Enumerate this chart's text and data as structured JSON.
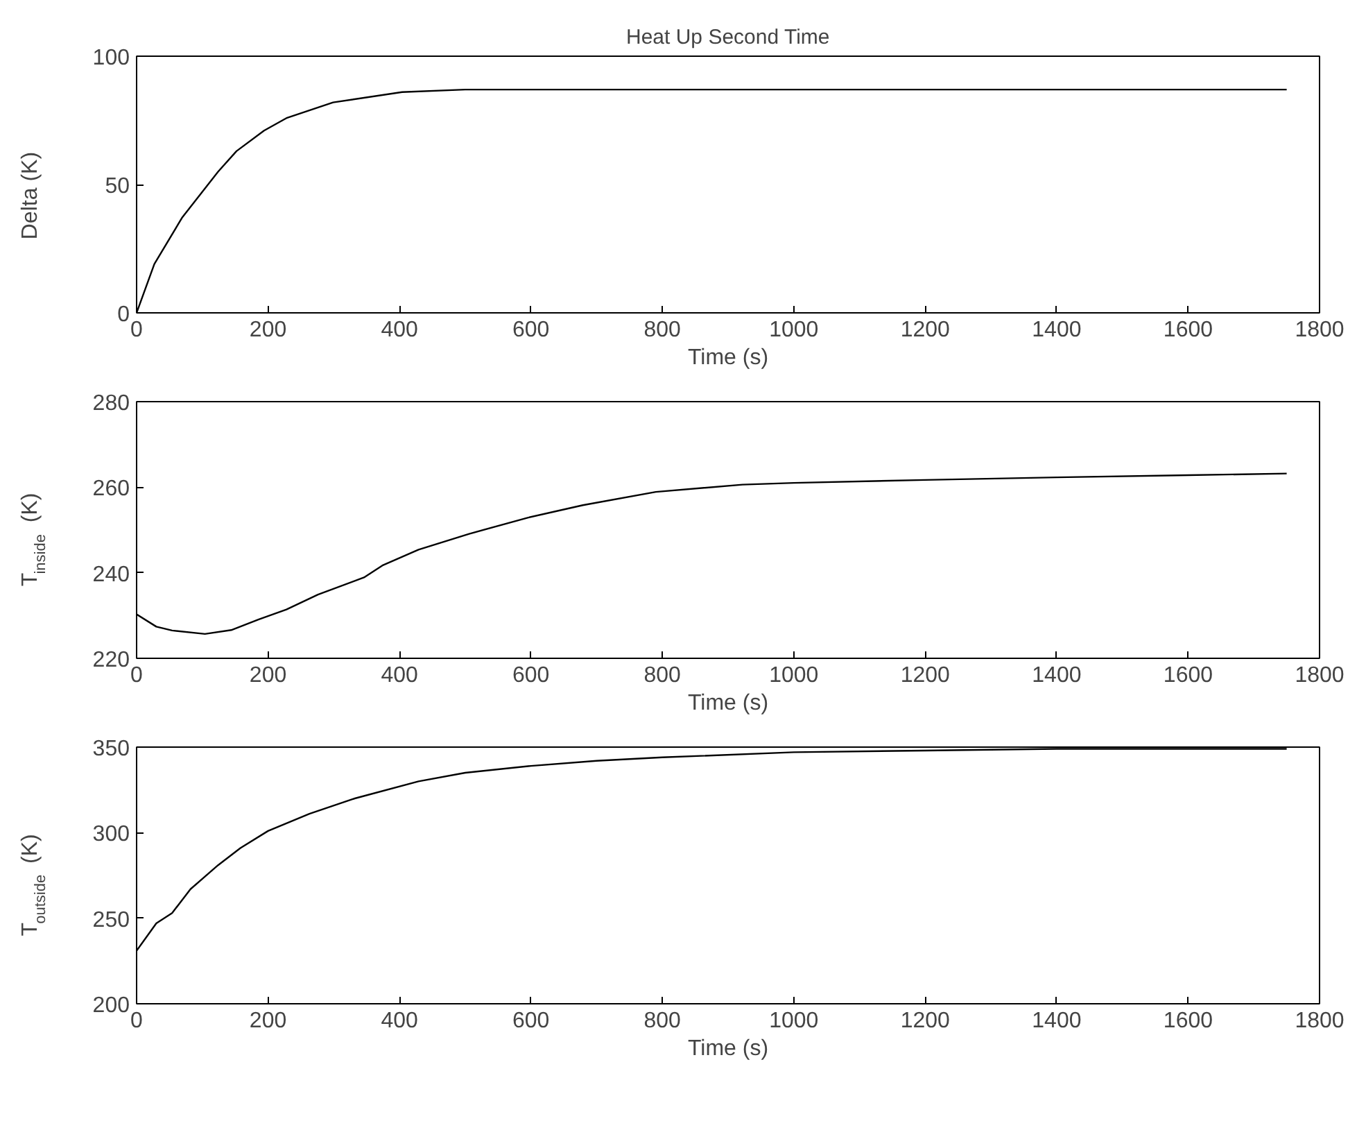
{
  "chart_data": [
    {
      "type": "line",
      "title": "Heat Up Second Time",
      "xlabel": "Time (s)",
      "ylabel": "Delta (K)",
      "xlim": [
        0,
        1800
      ],
      "ylim": [
        0,
        100
      ],
      "xticks": [
        0,
        200,
        400,
        600,
        800,
        1000,
        1200,
        1400,
        1600,
        1800
      ],
      "yticks": [
        0,
        50,
        100
      ],
      "series": [
        {
          "color": "#000000",
          "x": [
            0,
            27,
            69,
            124,
            152,
            194,
            229,
            299,
            404,
            500,
            1750
          ],
          "values": [
            0,
            19,
            37,
            55,
            63,
            71,
            76,
            82,
            86,
            87,
            87
          ]
        }
      ]
    },
    {
      "type": "line",
      "xlabel": "Time (s)",
      "ylabel": "T$_{inside}$ (K)",
      "xlim": [
        0,
        1800
      ],
      "ylim": [
        220,
        280
      ],
      "xticks": [
        0,
        200,
        400,
        600,
        800,
        1000,
        1200,
        1400,
        1600,
        1800
      ],
      "yticks": [
        220,
        240,
        260,
        280
      ],
      "series": [
        {
          "color": "#000000",
          "x": [
            0,
            30,
            54,
            104,
            144,
            186,
            228,
            276,
            346,
            374,
            429,
            506,
            596,
            679,
            790,
            922,
            1000,
            1200,
            1400,
            1600,
            1750
          ],
          "values": [
            230.3,
            227.4,
            226.5,
            225.7,
            226.6,
            229.1,
            231.4,
            234.9,
            238.9,
            241.7,
            245.4,
            249.1,
            252.9,
            255.8,
            258.9,
            260.6,
            261,
            261.7,
            262.3,
            262.8,
            263.2
          ]
        }
      ]
    },
    {
      "type": "line",
      "xlabel": "Time (s)",
      "ylabel": "T$_{outside}$ (K)",
      "xlim": [
        0,
        1800
      ],
      "ylim": [
        200,
        350
      ],
      "xticks": [
        0,
        200,
        400,
        600,
        800,
        1000,
        1200,
        1400,
        1600,
        1800
      ],
      "yticks": [
        200,
        250,
        300,
        350
      ],
      "series": [
        {
          "color": "#000000",
          "x": [
            0,
            30,
            54,
            82,
            124,
            158,
            200,
            263,
            332,
            429,
            500,
            600,
            700,
            800,
            1000,
            1200,
            1400,
            1750
          ],
          "values": [
            231,
            247,
            253,
            267,
            281,
            291,
            301,
            311,
            320,
            330,
            335,
            339,
            342,
            344,
            347,
            348,
            349,
            349
          ]
        }
      ]
    }
  ]
}
